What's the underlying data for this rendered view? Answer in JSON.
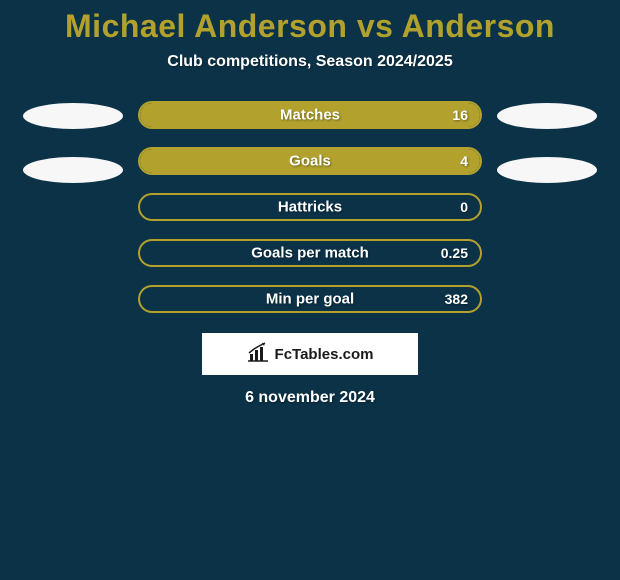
{
  "background_color": "#0c3248",
  "title": {
    "text": "Michael Anderson vs Anderson",
    "color": "#b2a22d",
    "fontsize": 32
  },
  "subtitle": {
    "text": "Club competitions, Season 2024/2025",
    "color": "#ffffff",
    "fontsize": 16
  },
  "side_ellipses": {
    "left": [
      {
        "color": "#f7f7f7"
      },
      {
        "color": "#f7f7f7"
      }
    ],
    "right": [
      {
        "color": "#f7f7f7"
      },
      {
        "color": "#f7f7f7"
      }
    ]
  },
  "bars": {
    "fill_color": "#b2a22d",
    "track_color": "#0c3248",
    "border_color": "#b2a22d",
    "label_color": "#ffffff",
    "value_color": "#ffffff",
    "items": [
      {
        "label": "Matches",
        "value": "16",
        "fill_pct": 100
      },
      {
        "label": "Goals",
        "value": "4",
        "fill_pct": 100
      },
      {
        "label": "Hattricks",
        "value": "0",
        "fill_pct": 0
      },
      {
        "label": "Goals per match",
        "value": "0.25",
        "fill_pct": 0
      },
      {
        "label": "Min per goal",
        "value": "382",
        "fill_pct": 0
      }
    ]
  },
  "logo": {
    "background": "#ffffff",
    "text": "FcTables.com",
    "text_color": "#1a1a1a",
    "icon_color": "#1a1a1a"
  },
  "date": {
    "text": "6 november 2024",
    "color": "#ffffff"
  }
}
